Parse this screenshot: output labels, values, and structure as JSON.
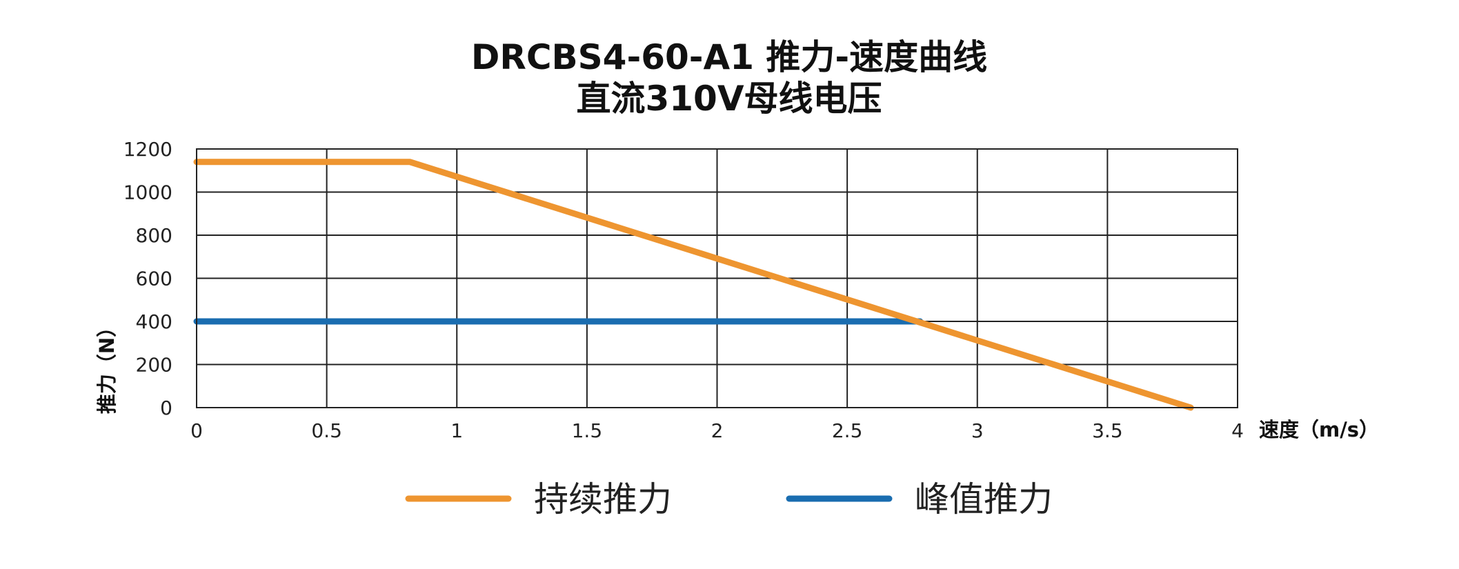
{
  "chart_data": {
    "type": "line",
    "title": "DRCBS4-60-A1 推力-速度曲线",
    "subtitle": "直流310V母线电压",
    "xlabel": "速度（m/s）",
    "ylabel": "推力（N）",
    "xlim": [
      0,
      4
    ],
    "ylim": [
      0,
      1200
    ],
    "x_ticks": [
      "0",
      "0.5",
      "1",
      "1.5",
      "2",
      "2.5",
      "3",
      "3.5",
      "4"
    ],
    "y_ticks": [
      "0",
      "200",
      "400",
      "600",
      "800",
      "1000",
      "1200"
    ],
    "grid": true,
    "legend_position": "bottom",
    "series": [
      {
        "name": "持续推力",
        "color": "#ee9530",
        "points": [
          [
            0,
            1140
          ],
          [
            0.82,
            1140
          ],
          [
            3.82,
            0
          ]
        ]
      },
      {
        "name": "峰值推力",
        "color": "#1a6db0",
        "points": [
          [
            0,
            400
          ],
          [
            2.78,
            400
          ]
        ]
      }
    ]
  }
}
